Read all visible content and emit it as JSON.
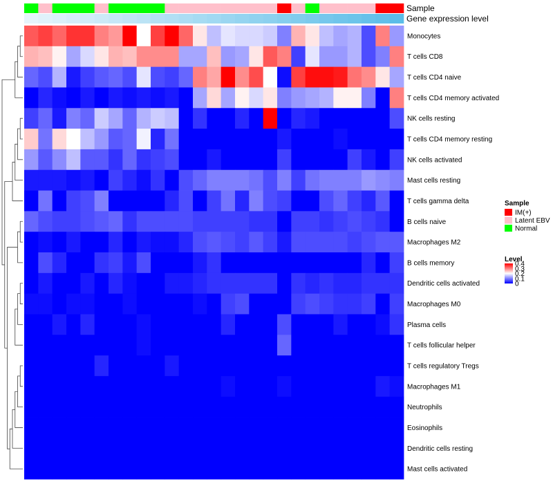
{
  "chart_data": {
    "type": "heatmap",
    "annotation_titles": [
      "Sample",
      "Gene expression level"
    ],
    "rows": [
      "Monocytes",
      "T cells CD8",
      "T cells CD4 naive",
      "T cells CD4 memory activated",
      "NK cells resting",
      "T cells CD4 memory resting",
      "NK cells activated",
      "Mast cells resting",
      "T cells gamma delta",
      "B cells naive",
      "Macrophages M2",
      "B cells memory",
      "Dendritic cells activated",
      "Macrophages M0",
      "Plasma cells",
      "T cells follicular helper",
      "T cells regulatory  Tregs",
      "Macrophages M1",
      "Neutrophils",
      "Eosinophils",
      "Dendritic cells resting",
      "Mast cells activated"
    ],
    "sample_groups": [
      "N",
      "L",
      "N",
      "N",
      "N",
      "L",
      "N",
      "N",
      "N",
      "N",
      "L",
      "L",
      "L",
      "L",
      "L",
      "L",
      "L",
      "L",
      "I",
      "L",
      "N",
      "L",
      "L",
      "L",
      "L",
      "I",
      "I"
    ],
    "expression_level": [
      0.0,
      0.04,
      0.08,
      0.12,
      0.15,
      0.19,
      0.23,
      0.27,
      0.31,
      0.35,
      0.38,
      0.42,
      0.46,
      0.5,
      0.54,
      0.58,
      0.62,
      0.65,
      0.69,
      0.73,
      0.77,
      0.81,
      0.85,
      0.88,
      0.92,
      0.96,
      1.0
    ],
    "values": [
      [
        0.33,
        0.35,
        0.32,
        0.36,
        0.36,
        0.3,
        0.28,
        0.4,
        0.2,
        0.35,
        0.4,
        0.32,
        0.22,
        0.15,
        0.18,
        0.17,
        0.17,
        0.16,
        0.1,
        0.26,
        0.22,
        0.15,
        0.13,
        0.14,
        0.06,
        0.3,
        0.12
      ],
      [
        0.26,
        0.25,
        0.21,
        0.13,
        0.17,
        0.22,
        0.26,
        0.25,
        0.29,
        0.29,
        0.29,
        0.13,
        0.13,
        0.25,
        0.12,
        0.13,
        0.22,
        0.33,
        0.3,
        0.05,
        0.18,
        0.12,
        0.12,
        0.14,
        0.06,
        0.1,
        0.3
      ],
      [
        0.08,
        0.06,
        0.14,
        0.02,
        0.05,
        0.07,
        0.08,
        0.06,
        0.18,
        0.06,
        0.05,
        0.08,
        0.3,
        0.27,
        0.4,
        0.29,
        0.34,
        0.2,
        0.01,
        0.35,
        0.39,
        0.39,
        0.38,
        0.31,
        0.29,
        0.22,
        0.13
      ],
      [
        0.0,
        0.03,
        0.01,
        0.0,
        0.02,
        0.0,
        0.02,
        0.01,
        0.02,
        0.01,
        0.02,
        0.0,
        0.13,
        0.23,
        0.13,
        0.21,
        0.17,
        0.22,
        0.1,
        0.12,
        0.13,
        0.14,
        0.21,
        0.21,
        0.1,
        0.0,
        0.3
      ],
      [
        0.05,
        0.08,
        0.02,
        0.1,
        0.08,
        0.16,
        0.13,
        0.08,
        0.14,
        0.16,
        0.15,
        0.0,
        0.04,
        0.0,
        0.0,
        0.03,
        0.0,
        0.4,
        0.0,
        0.03,
        0.02,
        0.0,
        0.0,
        0.0,
        0.0,
        0.0,
        0.06
      ],
      [
        0.24,
        0.09,
        0.23,
        0.2,
        0.15,
        0.12,
        0.07,
        0.08,
        0.19,
        0.03,
        0.09,
        0.0,
        0.0,
        0.0,
        0.0,
        0.0,
        0.0,
        0.0,
        0.02,
        0.0,
        0.0,
        0.0,
        0.01,
        0.0,
        0.0,
        0.0,
        0.0
      ],
      [
        0.12,
        0.07,
        0.11,
        0.15,
        0.07,
        0.07,
        0.04,
        0.08,
        0.04,
        0.05,
        0.06,
        0.0,
        0.0,
        0.02,
        0.0,
        0.0,
        0.0,
        0.0,
        0.05,
        0.0,
        0.0,
        0.0,
        0.0,
        0.05,
        0.02,
        0.0,
        0.05
      ],
      [
        0.02,
        0.02,
        0.02,
        0.01,
        0.02,
        0.0,
        0.05,
        0.03,
        0.01,
        0.04,
        0.0,
        0.06,
        0.08,
        0.1,
        0.1,
        0.1,
        0.09,
        0.06,
        0.1,
        0.05,
        0.09,
        0.1,
        0.1,
        0.1,
        0.12,
        0.11,
        0.1
      ],
      [
        0.0,
        0.09,
        0.0,
        0.05,
        0.06,
        0.1,
        0.0,
        0.0,
        0.0,
        0.0,
        0.03,
        0.06,
        0.0,
        0.05,
        0.09,
        0.03,
        0.1,
        0.06,
        0.05,
        0.0,
        0.0,
        0.06,
        0.08,
        0.05,
        0.03,
        0.07,
        0.0
      ],
      [
        0.08,
        0.06,
        0.05,
        0.05,
        0.06,
        0.07,
        0.08,
        0.04,
        0.06,
        0.06,
        0.06,
        0.06,
        0.05,
        0.05,
        0.05,
        0.05,
        0.04,
        0.04,
        0.0,
        0.05,
        0.05,
        0.04,
        0.05,
        0.06,
        0.05,
        0.04,
        0.0
      ],
      [
        0.0,
        0.01,
        0.0,
        0.02,
        0.0,
        0.0,
        0.03,
        0.0,
        0.02,
        0.01,
        0.01,
        0.03,
        0.06,
        0.07,
        0.06,
        0.05,
        0.07,
        0.05,
        0.02,
        0.06,
        0.06,
        0.06,
        0.06,
        0.05,
        0.06,
        0.07,
        0.07
      ],
      [
        0.0,
        0.06,
        0.03,
        0.0,
        0.0,
        0.04,
        0.05,
        0.02,
        0.06,
        0.0,
        0.0,
        0.0,
        0.02,
        0.04,
        0.0,
        0.0,
        0.0,
        0.0,
        0.0,
        0.0,
        0.0,
        0.0,
        0.0,
        0.0,
        0.03,
        0.0,
        0.05
      ],
      [
        0.0,
        0.02,
        0.0,
        0.0,
        0.02,
        0.0,
        0.03,
        0.01,
        0.0,
        0.0,
        0.02,
        0.02,
        0.03,
        0.04,
        0.04,
        0.04,
        0.04,
        0.04,
        0.0,
        0.04,
        0.03,
        0.04,
        0.03,
        0.03,
        0.04,
        0.04,
        0.04
      ],
      [
        0.01,
        0.01,
        0.0,
        0.01,
        0.01,
        0.0,
        0.0,
        0.01,
        0.0,
        0.0,
        0.0,
        0.0,
        0.01,
        0.0,
        0.05,
        0.06,
        0.0,
        0.0,
        0.0,
        0.05,
        0.06,
        0.05,
        0.04,
        0.04,
        0.05,
        0.0,
        0.05
      ],
      [
        0.0,
        0.0,
        0.02,
        0.0,
        0.03,
        0.0,
        0.0,
        0.0,
        0.01,
        0.0,
        0.0,
        0.0,
        0.0,
        0.0,
        0.03,
        0.0,
        0.0,
        0.0,
        0.06,
        0.0,
        0.0,
        0.0,
        0.02,
        0.0,
        0.0,
        0.01,
        0.04
      ],
      [
        0.0,
        0.0,
        0.0,
        0.0,
        0.0,
        0.0,
        0.0,
        0.0,
        0.01,
        0.0,
        0.0,
        0.0,
        0.0,
        0.0,
        0.0,
        0.0,
        0.0,
        0.0,
        0.08,
        0.0,
        0.0,
        0.0,
        0.0,
        0.0,
        0.0,
        0.0,
        0.0
      ],
      [
        0.0,
        0.0,
        0.0,
        0.0,
        0.0,
        0.03,
        0.0,
        0.0,
        0.0,
        0.0,
        0.02,
        0.0,
        0.0,
        0.0,
        0.0,
        0.0,
        0.0,
        0.0,
        0.0,
        0.0,
        0.0,
        0.0,
        0.0,
        0.0,
        0.0,
        0.0,
        0.0
      ],
      [
        0.0,
        0.0,
        0.0,
        0.0,
        0.0,
        0.0,
        0.0,
        0.0,
        0.0,
        0.0,
        0.0,
        0.0,
        0.0,
        0.0,
        0.01,
        0.0,
        0.0,
        0.0,
        0.01,
        0.0,
        0.0,
        0.0,
        0.0,
        0.0,
        0.0,
        0.02,
        0.01
      ],
      [
        0.0,
        0.0,
        0.0,
        0.0,
        0.0,
        0.0,
        0.0,
        0.0,
        0.0,
        0.0,
        0.0,
        0.0,
        0.0,
        0.0,
        0.0,
        0.0,
        0.0,
        0.0,
        0.0,
        0.0,
        0.0,
        0.0,
        0.0,
        0.0,
        0.0,
        0.0,
        0.0
      ],
      [
        0.0,
        0.0,
        0.0,
        0.0,
        0.0,
        0.0,
        0.0,
        0.0,
        0.0,
        0.0,
        0.0,
        0.0,
        0.0,
        0.0,
        0.0,
        0.0,
        0.0,
        0.0,
        0.0,
        0.0,
        0.0,
        0.0,
        0.0,
        0.0,
        0.0,
        0.0,
        0.0
      ],
      [
        0.0,
        0.0,
        0.0,
        0.0,
        0.0,
        0.0,
        0.0,
        0.0,
        0.0,
        0.0,
        0.0,
        0.0,
        0.0,
        0.0,
        0.0,
        0.0,
        0.0,
        0.0,
        0.0,
        0.0,
        0.0,
        0.0,
        0.0,
        0.0,
        0.0,
        0.0,
        0.0
      ],
      [
        0.0,
        0.0,
        0.0,
        0.0,
        0.0,
        0.0,
        0.0,
        0.0,
        0.0,
        0.0,
        0.0,
        0.0,
        0.0,
        0.0,
        0.0,
        0.0,
        0.0,
        0.0,
        0.0,
        0.0,
        0.0,
        0.0,
        0.0,
        0.0,
        0.0,
        0.0,
        0.0
      ]
    ],
    "value_range": [
      0,
      0.4
    ],
    "legend": {
      "sample_title": "Sample",
      "sample_entries": [
        {
          "key": "I",
          "label": "IM(+)",
          "color": "#ff0000"
        },
        {
          "key": "L",
          "label": "Latent EBV",
          "color": "#ffc0cb"
        },
        {
          "key": "N",
          "label": "Normal",
          "color": "#00ff00"
        }
      ],
      "level_title": "Level",
      "level_ticks": [
        "0.4",
        "0.3",
        "0.2",
        "0.1",
        "0"
      ],
      "level_tick_values": [
        0.4,
        0.3,
        0.2,
        0.1,
        0
      ]
    },
    "colors": {
      "low": "#0000ff",
      "mid": "#ffffff",
      "high": "#ff0000",
      "expression_low": "#e6f4fb",
      "expression_high": "#5bbde8",
      "tree": "#444444"
    },
    "row_dendrogram": [
      [
        0,
        1
      ],
      [
        22,
        2
      ],
      [
        23,
        3
      ],
      [
        4,
        5
      ],
      [
        25,
        6
      ],
      [
        26,
        7
      ],
      [
        27,
        8
      ],
      [
        9,
        10
      ],
      [
        29,
        11
      ],
      [
        12,
        13
      ],
      [
        31,
        14
      ],
      [
        32,
        15
      ],
      [
        16,
        17
      ],
      [
        34,
        18
      ],
      [
        35,
        19
      ],
      [
        36,
        20
      ],
      [
        37,
        21
      ],
      [
        30,
        38
      ],
      [
        28,
        39
      ],
      [
        24,
        40
      ]
    ]
  }
}
